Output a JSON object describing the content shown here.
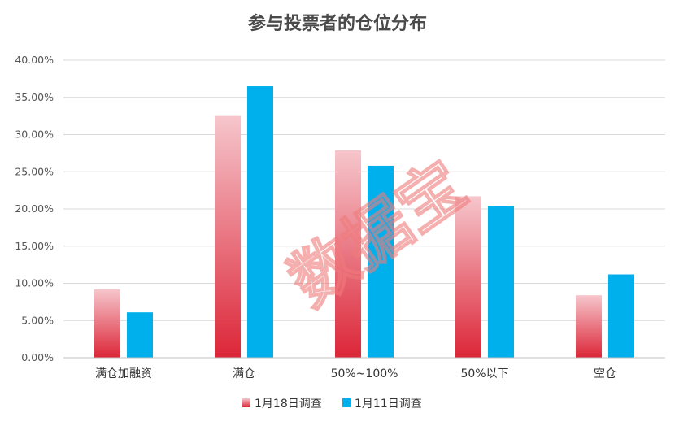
{
  "chart_data": {
    "type": "bar",
    "title": "参与投票者的仓位分布",
    "categories": [
      "满仓加融资",
      "满仓",
      "50%~100%",
      "50%以下",
      "空仓"
    ],
    "series": [
      {
        "name": "1月18日调查",
        "values": [
          9.2,
          32.5,
          27.9,
          21.7,
          8.4
        ],
        "color_top": "#f6c6cc",
        "color_bottom": "#dc2638"
      },
      {
        "name": "1月11日调查",
        "values": [
          6.1,
          36.5,
          25.8,
          20.4,
          11.2
        ],
        "color": "#00b0ec"
      }
    ],
    "yticks": [
      "0.00%",
      "5.00%",
      "10.00%",
      "15.00%",
      "20.00%",
      "25.00%",
      "30.00%",
      "35.00%",
      "40.00%"
    ],
    "ylim": [
      0,
      40
    ],
    "grid": true,
    "legend_position": "bottom",
    "xlabel": "",
    "ylabel": ""
  },
  "watermark": "数据宝"
}
